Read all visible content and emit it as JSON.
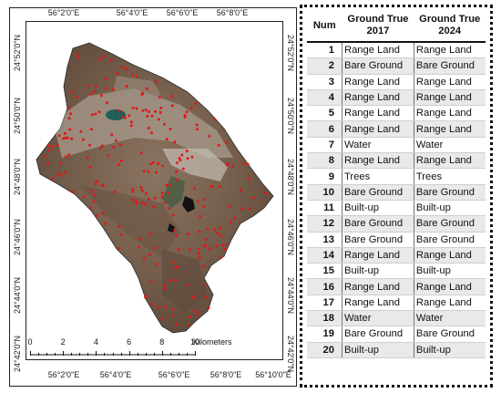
{
  "map": {
    "top_labels": [
      "56°2'0\"E",
      "56°4'0\"E",
      "56°6'0\"E",
      "56°8'0\"E"
    ],
    "bottom_labels": [
      "56°2'0\"E",
      "56°4'0\"E",
      "56°6'0\"E",
      "56°8'0\"E",
      "56°10'0\"E"
    ],
    "left_labels": [
      "24°52'0\"N",
      "24°50'0\"N",
      "24°48'0\"N",
      "24°46'0\"N",
      "24°44'0\"N",
      "24°42'0\"N"
    ],
    "right_labels": [
      "24°52'0\"N",
      "24°50'0\"N",
      "24°48'0\"N",
      "24°46'0\"N",
      "24°44'0\"N",
      "24°42'0\"N"
    ],
    "scalebar": {
      "ticks": [
        "0",
        "2",
        "4",
        "6",
        "8",
        "10"
      ],
      "unit": "Kilometers"
    },
    "colors": {
      "terrain": "#7a6452",
      "sample_point": "#e01818",
      "water": "#1f5f56"
    }
  },
  "table": {
    "headers": {
      "num": "Num",
      "y2017": "Ground True 2017",
      "y2024": "Ground True 2024"
    },
    "rows": [
      {
        "num": "1",
        "y2017": "Range Land",
        "y2024": "Range Land"
      },
      {
        "num": "2",
        "y2017": "Bare Ground",
        "y2024": "Bare Ground"
      },
      {
        "num": "3",
        "y2017": "Range Land",
        "y2024": "Range Land"
      },
      {
        "num": "4",
        "y2017": "Range Land",
        "y2024": "Range Land"
      },
      {
        "num": "5",
        "y2017": "Range Land",
        "y2024": "Range Land"
      },
      {
        "num": "6",
        "y2017": "Range Land",
        "y2024": "Range Land"
      },
      {
        "num": "7",
        "y2017": "Water",
        "y2024": "Water"
      },
      {
        "num": "8",
        "y2017": "Range Land",
        "y2024": "Range Land"
      },
      {
        "num": "9",
        "y2017": "Trees",
        "y2024": "Trees"
      },
      {
        "num": "10",
        "y2017": "Bare Ground",
        "y2024": "Bare Ground"
      },
      {
        "num": "11",
        "y2017": "Built-up",
        "y2024": "Built-up"
      },
      {
        "num": "12",
        "y2017": "Bare Ground",
        "y2024": "Bare Ground"
      },
      {
        "num": "13",
        "y2017": "Bare Ground",
        "y2024": "Bare Ground"
      },
      {
        "num": "14",
        "y2017": "Range Land",
        "y2024": "Range Land"
      },
      {
        "num": "15",
        "y2017": "Built-up",
        "y2024": "Built-up"
      },
      {
        "num": "16",
        "y2017": "Range Land",
        "y2024": "Range Land"
      },
      {
        "num": "17",
        "y2017": "Range Land",
        "y2024": "Range Land"
      },
      {
        "num": "18",
        "y2017": "Water",
        "y2024": "Water"
      },
      {
        "num": "19",
        "y2017": "Bare Ground",
        "y2024": "Bare Ground"
      },
      {
        "num": "20",
        "y2017": "Built-up",
        "y2024": "Built-up"
      }
    ]
  }
}
